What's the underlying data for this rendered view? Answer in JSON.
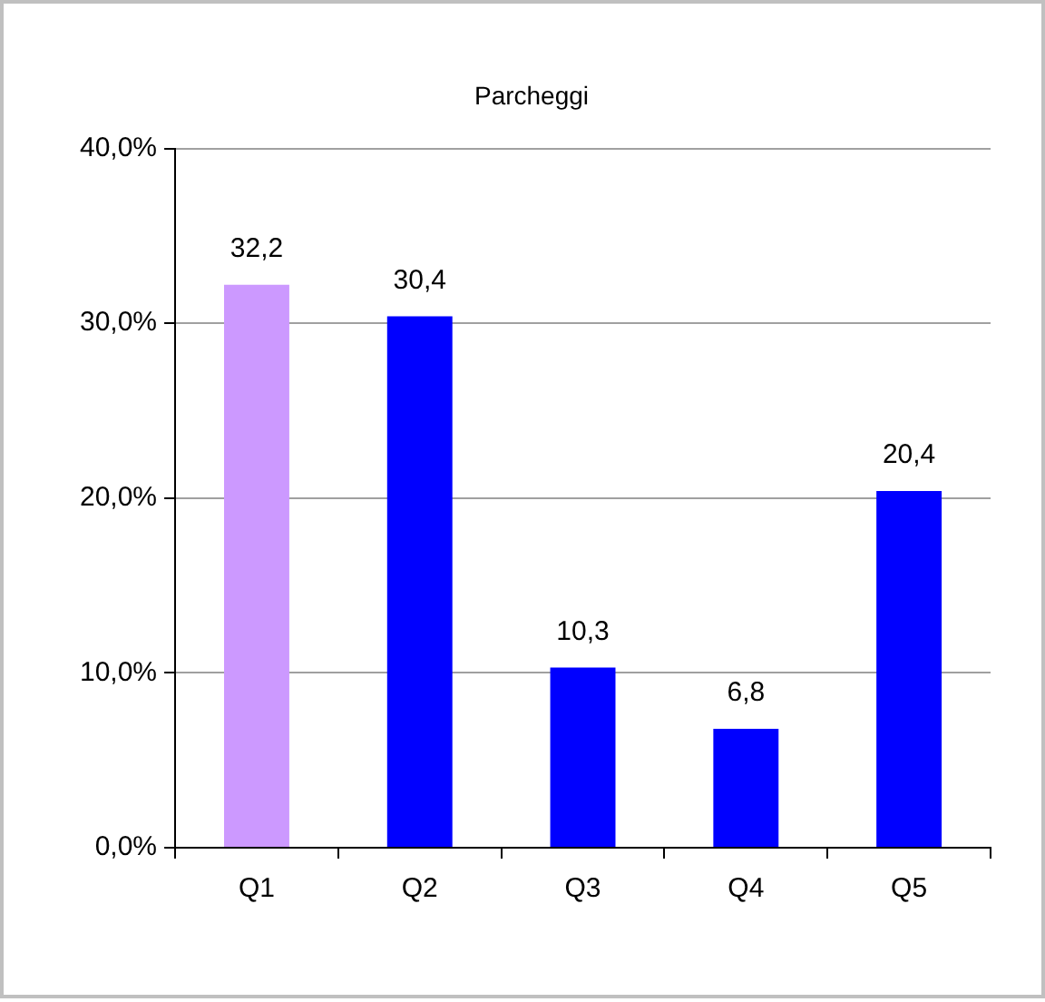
{
  "chart_data": {
    "type": "bar",
    "title": "Parcheggi",
    "categories": [
      "Q1",
      "Q2",
      "Q3",
      "Q4",
      "Q5"
    ],
    "values": [
      32.2,
      30.4,
      10.3,
      6.8,
      20.4
    ],
    "colors": [
      "#cc99ff",
      "#0000ff",
      "#0000ff",
      "#0000ff",
      "#0000ff"
    ],
    "value_labels": [
      "32,2",
      "30,4",
      "10,3",
      "6,8",
      "20,4"
    ],
    "ylim": [
      0,
      40
    ],
    "yticks": [
      {
        "value": 0,
        "label": "0,0%"
      },
      {
        "value": 10,
        "label": "10,0%"
      },
      {
        "value": 20,
        "label": "20,0%"
      },
      {
        "value": 30,
        "label": "30,0%"
      },
      {
        "value": 40,
        "label": "40,0%"
      }
    ],
    "grid": "y",
    "legend": false
  }
}
